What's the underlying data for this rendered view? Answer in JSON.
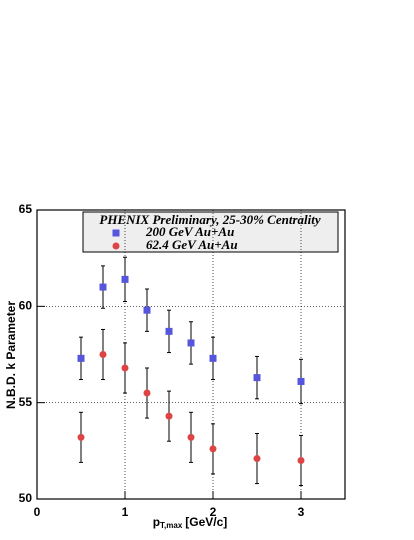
{
  "chart_data": {
    "type": "scatter",
    "legend_title": "PHENIX Preliminary, 25-30% Centrality",
    "ylabel": "N.B.D. k Parameter",
    "xlabel": "p",
    "xlabel_sub": "T,max",
    "xlabel_unit": "[GeV/c]",
    "xlim": [
      0,
      3.5
    ],
    "xticks": [
      0,
      1,
      2,
      3
    ],
    "ylim": [
      50,
      65
    ],
    "yticks": [
      50,
      55,
      60,
      65
    ],
    "grid": true,
    "series": [
      {
        "name": "200 GeV Au+Au",
        "color": "#5555dd",
        "marker": "square",
        "x": [
          0.5,
          0.75,
          1.0,
          1.25,
          1.5,
          1.75,
          2.0,
          2.5,
          3.0
        ],
        "values": [
          57.3,
          61.0,
          61.4,
          59.8,
          58.7,
          58.1,
          57.3,
          56.3,
          56.1
        ],
        "errors": [
          1.1,
          1.1,
          1.15,
          1.1,
          1.1,
          1.1,
          1.1,
          1.1,
          1.15
        ]
      },
      {
        "name": "62.4 GeV Au+Au",
        "color": "#dd4444",
        "marker": "circle",
        "x": [
          0.5,
          0.75,
          1.0,
          1.25,
          1.5,
          1.75,
          2.0,
          2.5,
          3.0
        ],
        "values": [
          53.2,
          57.5,
          56.8,
          55.5,
          54.3,
          53.2,
          52.6,
          52.1,
          52.0
        ],
        "errors": [
          1.3,
          1.3,
          1.3,
          1.3,
          1.3,
          1.3,
          1.3,
          1.3,
          1.3
        ]
      }
    ]
  }
}
